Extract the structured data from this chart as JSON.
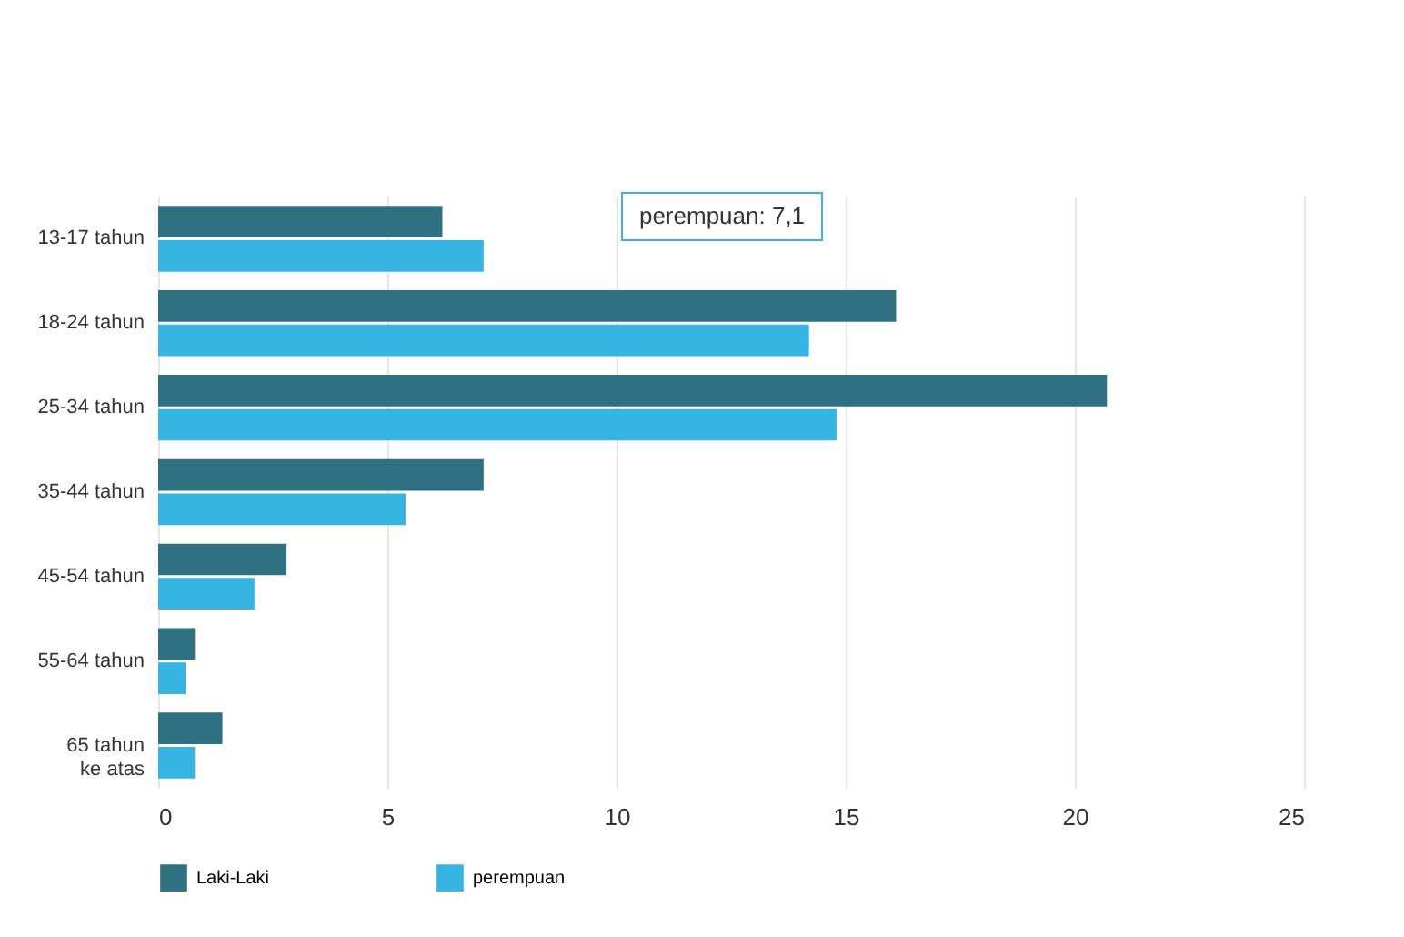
{
  "chart_data": {
    "type": "bar",
    "orientation": "horizontal",
    "categories": [
      "13-17 tahun",
      "18-24 tahun",
      "25-34 tahun",
      "35-44 tahun",
      "45-54 tahun",
      "55-64 tahun",
      "65 tahun\nke atas"
    ],
    "series": [
      {
        "name": "Laki-Laki",
        "color": "#2f7081",
        "values": [
          6.2,
          16.1,
          20.7,
          7.1,
          2.8,
          0.8,
          1.4
        ]
      },
      {
        "name": "perempuan",
        "color": "#36b5e3",
        "values": [
          7.1,
          14.2,
          14.8,
          5.4,
          2.1,
          0.6,
          0.8
        ]
      }
    ],
    "xlim": [
      0,
      25
    ],
    "xticks": [
      0,
      5,
      10,
      15,
      20,
      25
    ],
    "grid": "x",
    "legend": "bottom",
    "annotations": [
      "perempuan: 7,1"
    ]
  }
}
